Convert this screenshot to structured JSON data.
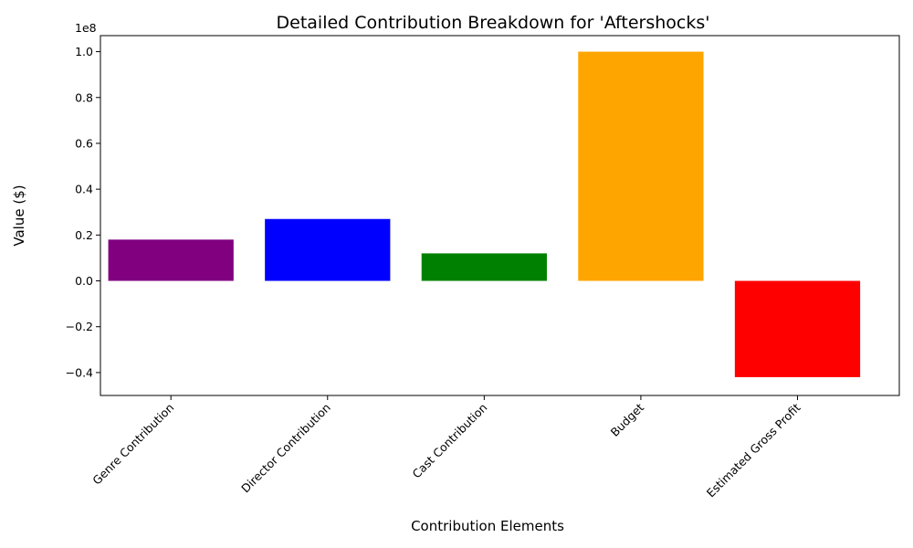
{
  "chart_data": {
    "type": "bar",
    "title": "Detailed Contribution Breakdown for 'Aftershocks'",
    "xlabel": "Contribution Elements",
    "ylabel": "Value ($)",
    "y_offset_label": "1e8",
    "y_scale": 100000000,
    "ylim": [
      -50000000,
      107000000
    ],
    "y_ticks": [
      -40000000,
      -20000000,
      0,
      20000000,
      40000000,
      60000000,
      80000000,
      100000000
    ],
    "y_tick_labels": [
      "−0.4",
      "−0.2",
      "0.0",
      "0.2",
      "0.4",
      "0.6",
      "0.8",
      "1.0"
    ],
    "categories": [
      "Genre Contribution",
      "Director Contribution",
      "Cast Contribution",
      "Budget",
      "Estimated Gross Profit"
    ],
    "values": [
      18000000,
      27000000,
      12000000,
      100000000,
      -42000000
    ],
    "colors": [
      "#800080",
      "#0000ff",
      "#008000",
      "#ffa500",
      "#ff0000"
    ],
    "grid": false,
    "legend": "none"
  }
}
